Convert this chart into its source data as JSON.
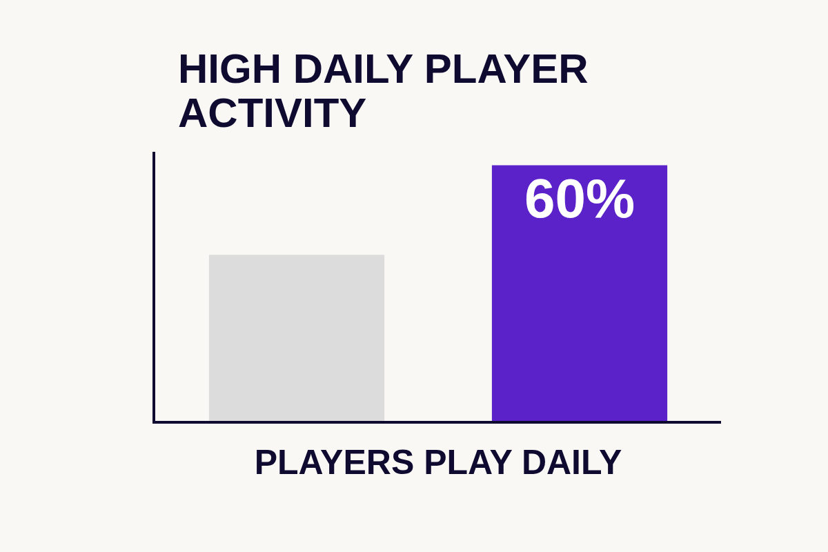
{
  "chart_data": {
    "type": "bar",
    "title": "HIGH DAILY PLAYER ACTIVITY",
    "xlabel": "PLAYERS PLAY DAILY",
    "categories": [
      null,
      null
    ],
    "values": [
      39,
      60
    ],
    "colors": [
      "#dcdcdc",
      "#5a22c8"
    ],
    "value_labels": [
      null,
      "60%"
    ]
  }
}
